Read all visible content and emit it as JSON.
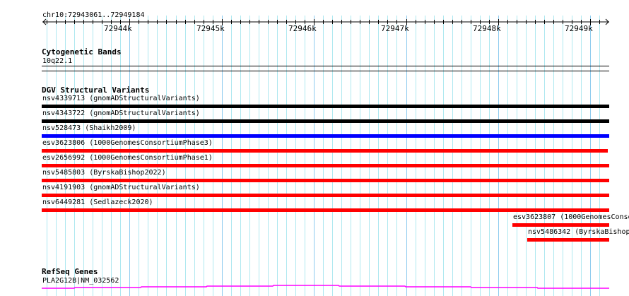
{
  "ruler": {
    "location": "chr10:72943061..72949184",
    "ticks": [
      "72944k",
      "72945k",
      "72946k",
      "72947k",
      "72948k",
      "72949k"
    ]
  },
  "cytoband": {
    "title": "Cytogenetic Bands",
    "band": "10q22.1"
  },
  "dgv": {
    "title": "DGV Structural Variants",
    "items": [
      {
        "label": "nsv4339713 (gnomADStructuralVariants)",
        "color": "#000000"
      },
      {
        "label": "nsv4343722 (gnomADStructuralVariants)",
        "color": "#000000"
      },
      {
        "label": "nsv528473 (Shaikh2009)",
        "color": "#0000ff"
      },
      {
        "label": "esv3623806 (1000GenomesConsortiumPhase3)",
        "color": "#ff0000"
      },
      {
        "label": "esv2656992 (1000GenomesConsortiumPhase1)",
        "color": "#ff0000"
      },
      {
        "label": "nsv5485803 (ByrskaBishop2022)",
        "color": "#ff0000"
      },
      {
        "label": "nsv4191903 (gnomADStructuralVariants)",
        "color": "#ff0000"
      },
      {
        "label": "nsv6449281 (Sedlazeck2020)",
        "color": "#ff0000"
      },
      {
        "label": "esv3623807 (1000GenomesConso",
        "color": "#ff0000"
      },
      {
        "label": "nsv5486342 (ByrskaBishop",
        "color": "#ff0000"
      }
    ]
  },
  "refseq": {
    "title": "RefSeq Genes",
    "gene": "PLA2G12B|NM_032562",
    "color": "#ff00ff"
  }
}
